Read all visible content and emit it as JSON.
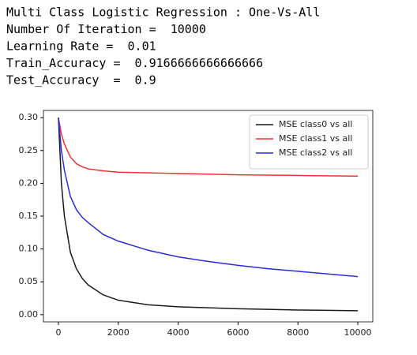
{
  "output_lines": [
    "Multi Class Logistic Regression : One-Vs-All",
    "Number Of Iteration =  10000",
    "Learning Rate =  0.01",
    "Train_Accuracy =  0.9166666666666666",
    "Test_Accuracy  =  0.9"
  ],
  "chart_data": {
    "type": "line",
    "x": [
      0,
      100,
      200,
      400,
      600,
      800,
      1000,
      1500,
      2000,
      3000,
      4000,
      5000,
      6000,
      7000,
      8000,
      9000,
      10000
    ],
    "series": [
      {
        "name": "MSE class0 vs all",
        "color": "#1a1a1a",
        "values": [
          0.3,
          0.2,
          0.15,
          0.095,
          0.07,
          0.055,
          0.045,
          0.03,
          0.022,
          0.015,
          0.012,
          0.0105,
          0.009,
          0.008,
          0.007,
          0.0065,
          0.006
        ]
      },
      {
        "name": "MSE class1 vs all",
        "color": "#f03030",
        "values": [
          0.3,
          0.275,
          0.26,
          0.24,
          0.23,
          0.225,
          0.222,
          0.219,
          0.217,
          0.216,
          0.215,
          0.214,
          0.213,
          0.2125,
          0.212,
          0.2115,
          0.211
        ]
      },
      {
        "name": "MSE class2 vs all",
        "color": "#2a2ae0",
        "values": [
          0.3,
          0.25,
          0.22,
          0.18,
          0.16,
          0.148,
          0.14,
          0.122,
          0.112,
          0.098,
          0.088,
          0.081,
          0.075,
          0.07,
          0.066,
          0.062,
          0.058
        ]
      }
    ],
    "xlim": [
      -500,
      10500
    ],
    "xticks": [
      0,
      2000,
      4000,
      6000,
      8000,
      10000
    ],
    "ylim": [
      -0.011,
      0.311
    ],
    "yticks": [
      {
        "value": 0,
        "label": "0.00"
      },
      {
        "value": 0.05,
        "label": "0.05"
      },
      {
        "value": 0.1,
        "label": "0.10"
      },
      {
        "value": 0.15,
        "label": "0.15"
      },
      {
        "value": 0.2,
        "label": "0.20"
      },
      {
        "value": 0.25,
        "label": "0.25"
      },
      {
        "value": 0.3,
        "label": "0.30"
      }
    ],
    "legend": "upper right"
  }
}
